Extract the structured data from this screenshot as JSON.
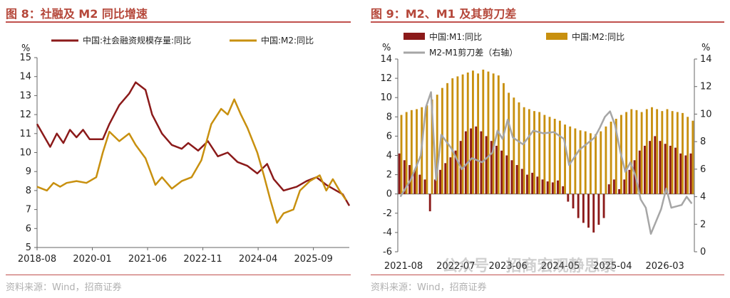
{
  "figures": [
    {
      "title": "图 8：社融及 M2 同比增速",
      "source": "资料来源：Wind，招商证券"
    },
    {
      "title": "图 9：M2、M1 及其剪刀差",
      "source": "资料来源：Wind，招商证券"
    }
  ],
  "watermark": "公众号 · 招商宏观静思录",
  "colors": {
    "dark_red": "#8b1a1a",
    "gold": "#c8900f",
    "gray": "#a6a6a6",
    "accent": "#c0504d"
  },
  "chart_data": [
    {
      "type": "line",
      "title": "",
      "y_unit": "%",
      "ylim": [
        5,
        15
      ],
      "yticks": [
        "5",
        "6",
        "7",
        "8",
        "9",
        "10",
        "11",
        "12",
        "13",
        "14",
        "15"
      ],
      "xticks": [
        "2018-08",
        "2020-01",
        "2021-06",
        "2022-11",
        "2024-04",
        "2025-09"
      ],
      "legend": "top",
      "grid": false,
      "n_points": 96,
      "series": [
        {
          "name": "中国:社会融资规模存量:同比",
          "color": "#8b1a1a",
          "points": [
            [
              0,
              11.5
            ],
            [
              4,
              10.3
            ],
            [
              6,
              11.0
            ],
            [
              8,
              10.5
            ],
            [
              10,
              11.2
            ],
            [
              12,
              10.8
            ],
            [
              14,
              11.2
            ],
            [
              16,
              10.7
            ],
            [
              20,
              10.7
            ],
            [
              22,
              11.5
            ],
            [
              25,
              12.5
            ],
            [
              28,
              13.1
            ],
            [
              30,
              13.7
            ],
            [
              33,
              13.3
            ],
            [
              35,
              12.0
            ],
            [
              38,
              11.0
            ],
            [
              41,
              10.4
            ],
            [
              44,
              10.2
            ],
            [
              46,
              10.5
            ],
            [
              49,
              10.1
            ],
            [
              52,
              10.6
            ],
            [
              55,
              9.8
            ],
            [
              58,
              10.0
            ],
            [
              61,
              9.5
            ],
            [
              64,
              9.3
            ],
            [
              67,
              8.9
            ],
            [
              70,
              9.4
            ],
            [
              72,
              8.6
            ],
            [
              75,
              8.0
            ],
            [
              79,
              8.2
            ],
            [
              82,
              8.5
            ],
            [
              85,
              8.7
            ],
            [
              88,
              8.3
            ],
            [
              91,
              8.0
            ],
            [
              93,
              7.8
            ],
            [
              95,
              7.2
            ]
          ]
        },
        {
          "name": "中国:M2:同比",
          "color": "#c8900f",
          "points": [
            [
              0,
              8.2
            ],
            [
              3,
              8.0
            ],
            [
              5,
              8.4
            ],
            [
              7,
              8.2
            ],
            [
              9,
              8.4
            ],
            [
              12,
              8.5
            ],
            [
              15,
              8.4
            ],
            [
              18,
              8.7
            ],
            [
              20,
              10.0
            ],
            [
              22,
              11.1
            ],
            [
              25,
              10.6
            ],
            [
              28,
              11.0
            ],
            [
              30,
              10.4
            ],
            [
              33,
              9.7
            ],
            [
              36,
              8.3
            ],
            [
              38,
              8.7
            ],
            [
              41,
              8.1
            ],
            [
              44,
              8.5
            ],
            [
              47,
              8.7
            ],
            [
              50,
              9.6
            ],
            [
              53,
              11.5
            ],
            [
              56,
              12.3
            ],
            [
              58,
              12.0
            ],
            [
              60,
              12.8
            ],
            [
              62,
              12.0
            ],
            [
              64,
              11.3
            ],
            [
              67,
              10.0
            ],
            [
              69,
              8.8
            ],
            [
              71,
              7.5
            ],
            [
              73,
              6.3
            ],
            [
              75,
              6.8
            ],
            [
              78,
              7.0
            ],
            [
              80,
              8.0
            ],
            [
              83,
              8.5
            ],
            [
              86,
              8.8
            ],
            [
              88,
              8.0
            ],
            [
              90,
              8.6
            ],
            [
              92,
              8.0
            ],
            [
              94,
              7.5
            ]
          ]
        }
      ]
    },
    {
      "type": "bar+line",
      "title": "",
      "y_unit_left": "%",
      "y_unit_right": "%",
      "ylim_left": [
        -6,
        14
      ],
      "ylim_right": [
        0,
        14
      ],
      "yticks_left": [
        "-6",
        "-4",
        "-2",
        "0",
        "2",
        "4",
        "6",
        "8",
        "10",
        "12",
        "14"
      ],
      "yticks_right": [
        "0",
        "2",
        "4",
        "6",
        "8",
        "10",
        "12",
        "14"
      ],
      "xticks": [
        "2021-08",
        "2022-07",
        "2023-06",
        "2024-05",
        "2025-04",
        "2026-03"
      ],
      "legend": "top",
      "grid": false,
      "series": [
        {
          "name": "中国:M1:同比",
          "color": "#8b1a1a",
          "axis": "left",
          "values": [
            4.2,
            3.5,
            3.0,
            2.5,
            2.0,
            1.5,
            -1.8,
            1.5,
            2.5,
            3.2,
            3.8,
            4.5,
            5.5,
            6.5,
            6.8,
            7.0,
            6.5,
            6.0,
            5.5,
            5.0,
            4.5,
            4.0,
            3.5,
            3.0,
            2.6,
            2.0,
            2.2,
            1.8,
            1.5,
            1.3,
            1.2,
            1.4,
            0.8,
            -0.8,
            -1.5,
            -2.5,
            -3.0,
            -3.5,
            -4.0,
            -3.2,
            -2.5,
            1.0,
            1.5,
            0.5,
            1.5,
            2.5,
            3.5,
            4.5,
            5.0,
            5.5,
            6.0,
            5.5,
            5.2,
            5.0,
            4.8,
            4.2,
            4.0,
            4.2
          ]
        },
        {
          "name": "中国:M2:同比",
          "color": "#c8900f",
          "axis": "left",
          "values": [
            8.2,
            8.5,
            8.7,
            8.8,
            9.0,
            9.2,
            9.8,
            10.3,
            11.0,
            11.5,
            12.0,
            12.2,
            12.4,
            12.6,
            12.8,
            12.5,
            12.9,
            12.7,
            12.5,
            12.3,
            11.5,
            10.5,
            10.0,
            9.5,
            9.0,
            8.8,
            8.6,
            8.5,
            8.2,
            8.0,
            7.8,
            7.6,
            7.2,
            7.0,
            6.8,
            6.6,
            6.5,
            6.3,
            6.2,
            6.5,
            7.0,
            7.5,
            7.8,
            8.2,
            8.5,
            8.8,
            8.7,
            8.5,
            8.8,
            9.0,
            8.8,
            8.6,
            8.8,
            8.6,
            8.5,
            8.4,
            8.0,
            7.6
          ]
        },
        {
          "name": "M2-M1剪刀差（右轴）",
          "color": "#a6a6a6",
          "axis": "right",
          "points": [
            [
              0,
              4.0
            ],
            [
              2,
              5.2
            ],
            [
              4,
              7.0
            ],
            [
              5,
              10.5
            ],
            [
              6,
              11.6
            ],
            [
              7,
              5.2
            ],
            [
              8,
              8.5
            ],
            [
              10,
              7.5
            ],
            [
              12,
              6.0
            ],
            [
              14,
              6.8
            ],
            [
              16,
              6.5
            ],
            [
              18,
              7.2
            ],
            [
              19,
              8.8
            ],
            [
              20,
              8.2
            ],
            [
              21,
              9.6
            ],
            [
              22,
              8.3
            ],
            [
              24,
              7.8
            ],
            [
              26,
              8.8
            ],
            [
              28,
              8.6
            ],
            [
              30,
              8.7
            ],
            [
              32,
              8.2
            ],
            [
              33,
              6.3
            ],
            [
              35,
              7.4
            ],
            [
              37,
              8.0
            ],
            [
              38,
              8.3
            ],
            [
              39,
              9.0
            ],
            [
              40,
              9.8
            ],
            [
              41,
              10.2
            ],
            [
              42,
              9.2
            ],
            [
              43,
              7.3
            ],
            [
              44,
              5.8
            ],
            [
              45,
              6.5
            ],
            [
              46,
              5.5
            ],
            [
              47,
              3.8
            ],
            [
              48,
              3.2
            ],
            [
              49,
              1.3
            ],
            [
              51,
              3.1
            ],
            [
              52,
              4.6
            ],
            [
              53,
              3.2
            ],
            [
              55,
              3.4
            ],
            [
              56,
              4.0
            ],
            [
              57,
              3.5
            ]
          ]
        }
      ]
    }
  ]
}
